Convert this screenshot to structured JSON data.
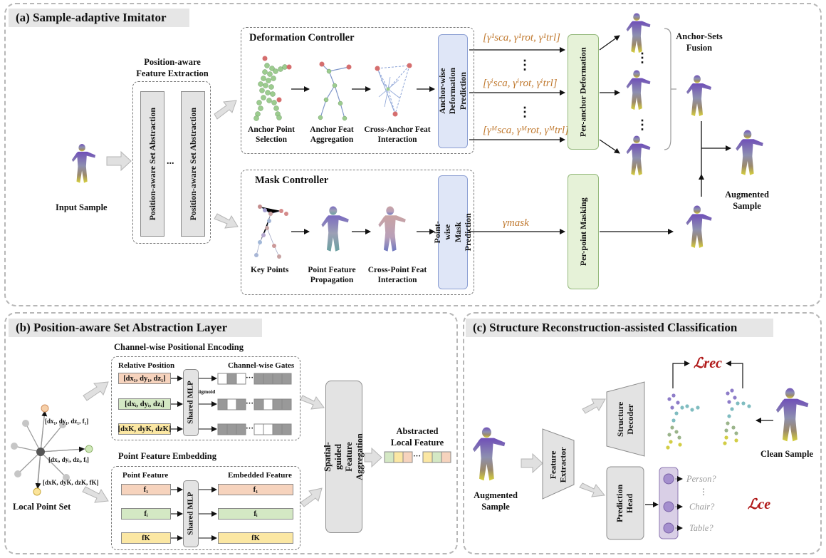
{
  "panel_a": {
    "title": "(a) Sample-adaptive Imitator",
    "input_sample": "Input Sample",
    "pafe_title": "Position-aware\nFeature Extraction",
    "pasa_label": "Position-aware Set Abstraction",
    "ellipsis": "...",
    "deformation_controller": "Deformation Controller",
    "anchor_point_selection": "Anchor Point\nSelection",
    "anchor_feat_aggregation": "Anchor Feat\nAggregation",
    "cross_anchor_feat_interaction": "Cross-Anchor Feat\nInteraction",
    "anchor_wise_prediction": "Anchor-wise\nDeformation Prediction",
    "param_1": "[γ¹sca, γ¹rot, γ¹trl]",
    "param_i": "[γⁱsca, γⁱrot, γⁱtrl]",
    "param_m": "[γᴹsca, γᴹrot, γᴹtrl]",
    "vdots": "⋮",
    "per_anchor_deformation": "Per-anchor Deformation",
    "anchor_sets_fusion": "Anchor-Sets\nFusion",
    "mask_controller": "Mask Controller",
    "key_points": "Key Points",
    "point_feature_propagation": "Point Feature\nPropagation",
    "cross_point_feat_interaction": "Cross-Point Feat\nInteraction",
    "point_wise_prediction": "Point-wise\nMask Prediction",
    "gamma_mask": "γmask",
    "per_point_masking": "Per-point Masking",
    "augmented_sample": "Augmented\nSample"
  },
  "panel_b": {
    "title": "(b) Position-aware Set Abstraction Layer",
    "cwpe_title": "Channel-wise Positional Encoding",
    "relative_position": "Relative Position",
    "channel_wise_gates": "Channel-wise Gates",
    "shared_mlp": "Shared MLP",
    "sigmoid": "Sigmoid",
    "rel_1": "[dx₁, dy₁, dz₁]",
    "rel_i": "[dxᵢ, dyᵢ, dzᵢ]",
    "rel_k": "[dxK, dyK, dzK]",
    "pfe_title": "Point Feature Embedding",
    "point_feature": "Point Feature",
    "embedded_feature": "Embedded Feature",
    "f_1": "f₁",
    "f_i": "fᵢ",
    "f_k": "fK",
    "node_1": "[dx₁, dy₁, dz₁, f₁]",
    "node_i": "[dxᵢ, dyᵢ, dzᵢ, fᵢ]",
    "node_k": "[dxK, dyK, dzK, fK]",
    "local_point_set": "Local Point Set",
    "sgfa": "Spatial-guided Feature\nAggregation",
    "abstracted_local_feature": "Abstracted\nLocal Feature",
    "dots": "···"
  },
  "panel_c": {
    "title": "(c) Structure Reconstruction-assisted Classification",
    "augmented_sample": "Augmented\nSample",
    "feature_extractor": "Feature\nExtractor",
    "structure_decoder": "Structure\nDecoder",
    "prediction_head": "Prediction\nHead",
    "loss_rec": "ℒrec",
    "loss_ce": "ℒce",
    "clean_sample": "Clean Sample",
    "class_person": "Person?",
    "class_chair": "Chair?",
    "class_table": "Table?",
    "vdots": "⋮"
  },
  "colors": {
    "orange": "#c0792f",
    "loss_red": "#b01818",
    "green_box": "#e6f2d8",
    "blue_box": "#dfe6f7",
    "purple_box": "#d9cfe6"
  }
}
